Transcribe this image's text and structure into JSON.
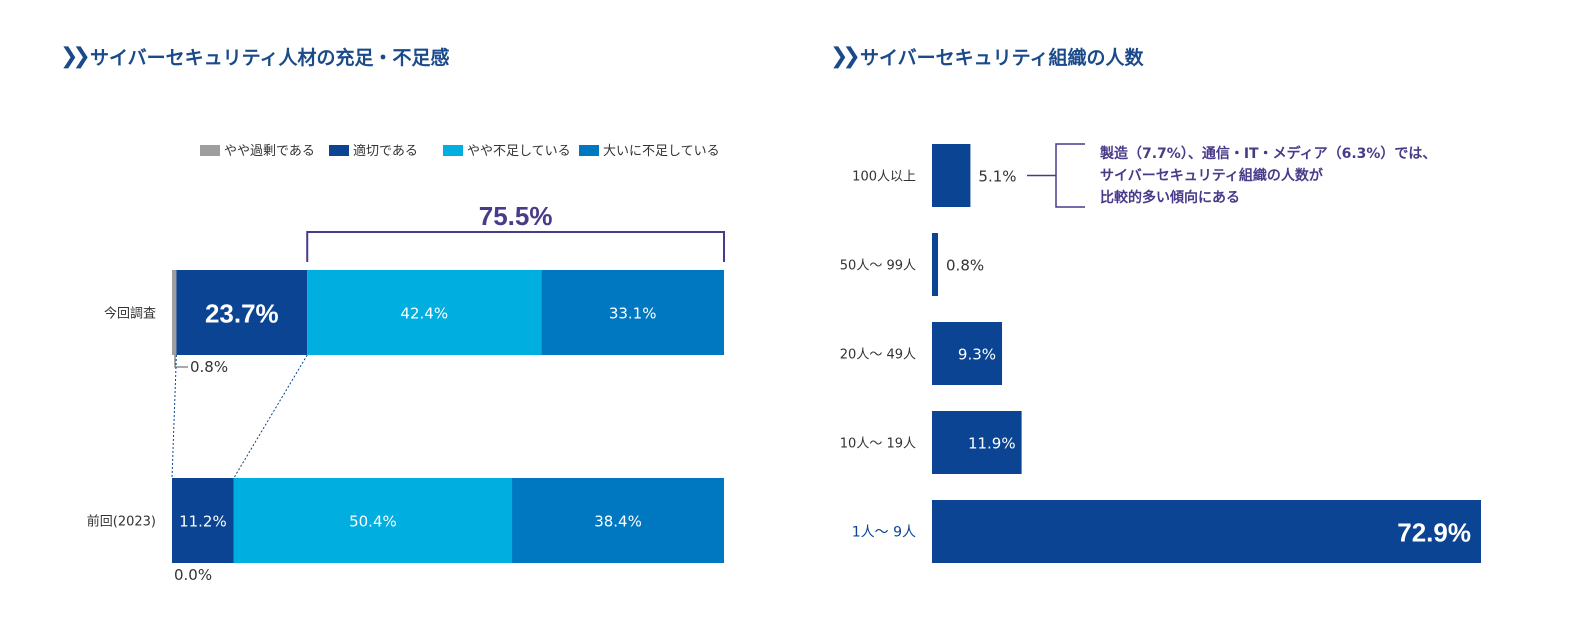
{
  "left_panel": {
    "title": "サイバーセキュリティ人材の充足・不足感",
    "chev": "❯❯"
  },
  "right_panel": {
    "title": "サイバーセキュリティ組織の人数",
    "chev": "❯❯",
    "note": [
      "製造（7.7%）、通信・IT・メディア（6.3%）では、",
      "サイバーセキュリティ組織の人数が",
      "比較的多い傾向にある"
    ]
  },
  "colors": {
    "title": "#1a4a8a",
    "accent_purple": "#4a3a8a",
    "やや過剰である": "#9e9e9e",
    "適切である": "#0a4492",
    "やや不足している": "#00aee0",
    "大いに不足している": "#0078c1",
    "org_bar": "#0a4492"
  },
  "chart_data": [
    {
      "type": "bar",
      "stacked": true,
      "orientation": "horizontal",
      "title": "サイバーセキュリティ人材の充足・不足感",
      "categories": [
        "今回調査",
        "前回(2023)"
      ],
      "series": [
        {
          "name": "やや過剰である",
          "values": [
            0.8,
            0.0
          ],
          "labels": [
            "0.8%",
            "0.0%"
          ]
        },
        {
          "name": "適切である",
          "values": [
            23.7,
            11.2
          ],
          "labels": [
            "23.7%",
            "11.2%"
          ]
        },
        {
          "name": "やや不足している",
          "values": [
            42.4,
            50.4
          ],
          "labels": [
            "42.4%",
            "50.4%"
          ]
        },
        {
          "name": "大いに不足している",
          "values": [
            33.1,
            38.4
          ],
          "labels": [
            "33.1%",
            "38.4%"
          ]
        }
      ],
      "xlim": [
        0,
        100
      ],
      "legend": "top-right",
      "annotation": {
        "label": "75.5%",
        "value": 75.5,
        "spans": [
          "やや不足している",
          "大いに不足している"
        ],
        "category": "今回調査"
      }
    },
    {
      "type": "bar",
      "orientation": "horizontal",
      "title": "サイバーセキュリティ組織の人数",
      "categories": [
        "100人以上",
        "50人〜 99人",
        "20人〜 49人",
        "10人〜 19人",
        "1人〜 9人"
      ],
      "values": [
        5.1,
        0.8,
        9.3,
        11.9,
        72.9
      ],
      "labels": [
        "5.1%",
        "0.8%",
        "9.3%",
        "11.9%",
        "72.9%"
      ],
      "xlim": [
        0,
        72.9
      ]
    }
  ]
}
